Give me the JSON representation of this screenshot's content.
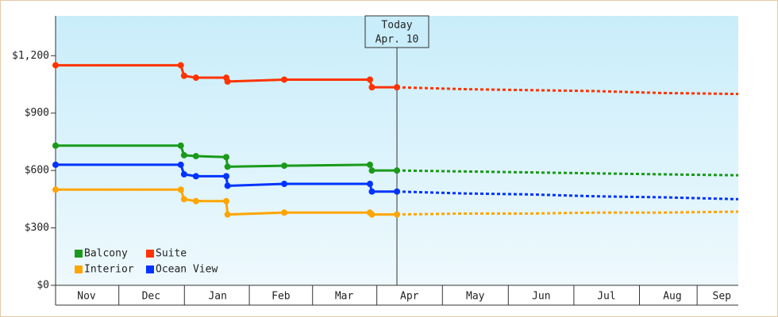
{
  "chart_data": {
    "type": "line",
    "x": [
      0,
      1.9,
      1.95,
      2.13,
      2.59,
      2.61,
      3.47,
      4.77,
      4.8,
      5.18
    ],
    "forecast_x": [
      5.18,
      6.2,
      7.2,
      8.2,
      9.2,
      10.36
    ],
    "series": [
      {
        "name": "Balcony",
        "color": "#1a9a1a",
        "values": [
          730,
          730,
          680,
          675,
          670,
          620,
          625,
          630,
          600,
          600
        ],
        "forecast": [
          600,
          595,
          590,
          585,
          580,
          575
        ]
      },
      {
        "name": "Suite",
        "color": "#ff3300",
        "values": [
          1150,
          1150,
          1095,
          1085,
          1085,
          1065,
          1075,
          1075,
          1035,
          1035
        ],
        "forecast": [
          1035,
          1025,
          1020,
          1015,
          1005,
          1000
        ]
      },
      {
        "name": "Interior",
        "color": "#ffa500",
        "values": [
          500,
          500,
          450,
          440,
          440,
          370,
          380,
          380,
          370,
          370
        ],
        "forecast": [
          370,
          375,
          375,
          380,
          380,
          385
        ]
      },
      {
        "name": "Ocean View",
        "color": "#0033ff",
        "values": [
          630,
          630,
          580,
          570,
          570,
          520,
          530,
          530,
          490,
          490
        ],
        "forecast": [
          490,
          480,
          475,
          465,
          460,
          450
        ]
      }
    ],
    "xlim": [
      0,
      10.36
    ],
    "xticks": [
      {
        "value": 0.47,
        "label": "Nov"
      },
      {
        "value": 1.45,
        "label": "Dec"
      },
      {
        "value": 2.46,
        "label": "Jan"
      },
      {
        "value": 3.42,
        "label": "Feb"
      },
      {
        "value": 4.38,
        "label": "Mar"
      },
      {
        "value": 5.37,
        "label": "Apr"
      },
      {
        "value": 6.37,
        "label": "May"
      },
      {
        "value": 7.37,
        "label": "Jun"
      },
      {
        "value": 8.36,
        "label": "Jul"
      },
      {
        "value": 9.36,
        "label": "Aug"
      },
      {
        "value": 10.11,
        "label": "Sep"
      }
    ],
    "ylim": [
      0,
      1400
    ],
    "yticks": [
      {
        "value": 0,
        "label": "$0"
      },
      {
        "value": 300,
        "label": "$300"
      },
      {
        "value": 600,
        "label": "$600"
      },
      {
        "value": 900,
        "label": "$900"
      },
      {
        "value": 1200,
        "label": "$1,200"
      }
    ],
    "annotation": {
      "x": 5.18,
      "lines": [
        "Today",
        "Apr. 10"
      ]
    },
    "legend": "lower-left"
  }
}
